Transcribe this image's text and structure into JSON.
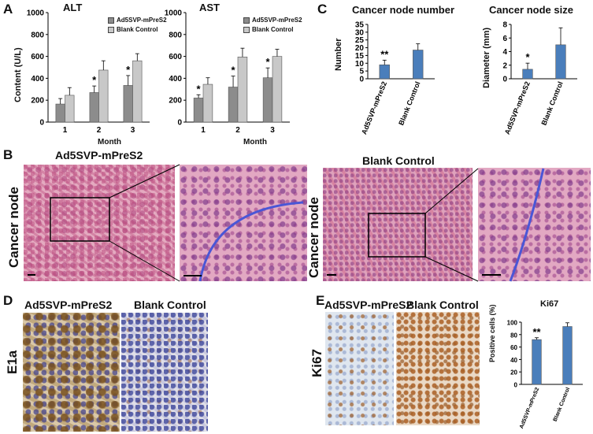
{
  "panels": {
    "A": "A",
    "B": "B",
    "C": "C",
    "D": "D",
    "E": "E"
  },
  "colors": {
    "dark_bar": "#8c8c8c",
    "light_bar": "#c8c8c8",
    "blue_bar": "#4a7ebb",
    "circle": "#4a56d6"
  },
  "star1": "*",
  "star2": "**",
  "chart_data": [
    {
      "type": "bar",
      "title": "ALT",
      "xlabel": "Month",
      "ylabel": "Content (U/L)",
      "ylim": [
        0,
        1000
      ],
      "yticks": [
        "0",
        "200",
        "400",
        "600",
        "800",
        "1000"
      ],
      "categories": [
        "1",
        "2",
        "3"
      ],
      "legend_placement": "top-right",
      "series": [
        {
          "name": "Ad5SVP-mPreS2",
          "values": [
            165,
            270,
            335
          ],
          "errors": [
            50,
            60,
            90
          ],
          "significance": [
            "",
            "*",
            "*"
          ]
        },
        {
          "name": "Blank Control",
          "values": [
            245,
            475,
            560
          ],
          "errors": [
            70,
            85,
            65
          ],
          "significance": [
            "",
            "",
            ""
          ]
        }
      ]
    },
    {
      "type": "bar",
      "title": "AST",
      "xlabel": "Month",
      "ylabel": "",
      "ylim": [
        0,
        1000
      ],
      "yticks": [
        "0",
        "200",
        "400",
        "600",
        "800",
        "1000"
      ],
      "categories": [
        "1",
        "2",
        "3"
      ],
      "legend_placement": "top-right",
      "series": [
        {
          "name": "Ad5SVP-mPreS2",
          "values": [
            220,
            320,
            405
          ],
          "errors": [
            30,
            100,
            90
          ],
          "significance": [
            "*",
            "*",
            "*"
          ]
        },
        {
          "name": "Blank Control",
          "values": [
            345,
            595,
            600
          ],
          "errors": [
            60,
            80,
            65
          ],
          "significance": [
            "",
            "",
            ""
          ]
        }
      ]
    },
    {
      "type": "bar",
      "title": "Cancer node number",
      "ylabel": "Number",
      "ylim": [
        0,
        35
      ],
      "yticks": [
        "0",
        "5",
        "10",
        "15",
        "20",
        "25",
        "30",
        "35"
      ],
      "categories": [
        "Ad5SVP-mPreS2",
        "Blank Control"
      ],
      "series": [
        {
          "values": [
            9,
            18.5
          ],
          "errors": [
            3,
            4
          ],
          "significance": [
            "**",
            ""
          ]
        }
      ]
    },
    {
      "type": "bar",
      "title": "Cancer node size",
      "ylabel": "Diameter (mm)",
      "ylim": [
        0,
        8
      ],
      "yticks": [
        "0",
        "2",
        "4",
        "6",
        "8"
      ],
      "categories": [
        "Ad5SVP-mPreS2",
        "Blank Control"
      ],
      "series": [
        {
          "values": [
            1.4,
            5
          ],
          "errors": [
            0.9,
            2.5
          ],
          "significance": [
            "*",
            ""
          ]
        }
      ]
    },
    {
      "type": "bar",
      "title": "Ki67",
      "ylabel": "Positive cells (%)",
      "ylim": [
        0,
        100
      ],
      "yticks": [
        "0",
        "20",
        "40",
        "60",
        "80",
        "100"
      ],
      "categories": [
        "Ad5SVP-mPreS2",
        "Blank Control"
      ],
      "series": [
        {
          "values": [
            72,
            93
          ],
          "errors": [
            3,
            6
          ],
          "significance": [
            "**",
            ""
          ]
        }
      ]
    }
  ],
  "sectionB": {
    "left_title": "Ad5SVP-mPreS2",
    "right_title": "Blank Control",
    "row_label": "Cancer node"
  },
  "sectionD": {
    "left_title": "Ad5SVP-mPreS2",
    "right_title": "Blank Control",
    "row_label": "E1a"
  },
  "sectionE": {
    "left_title": "Ad5SVP-mPreS2",
    "right_title": "Blank Control",
    "row_label": "Ki67"
  }
}
